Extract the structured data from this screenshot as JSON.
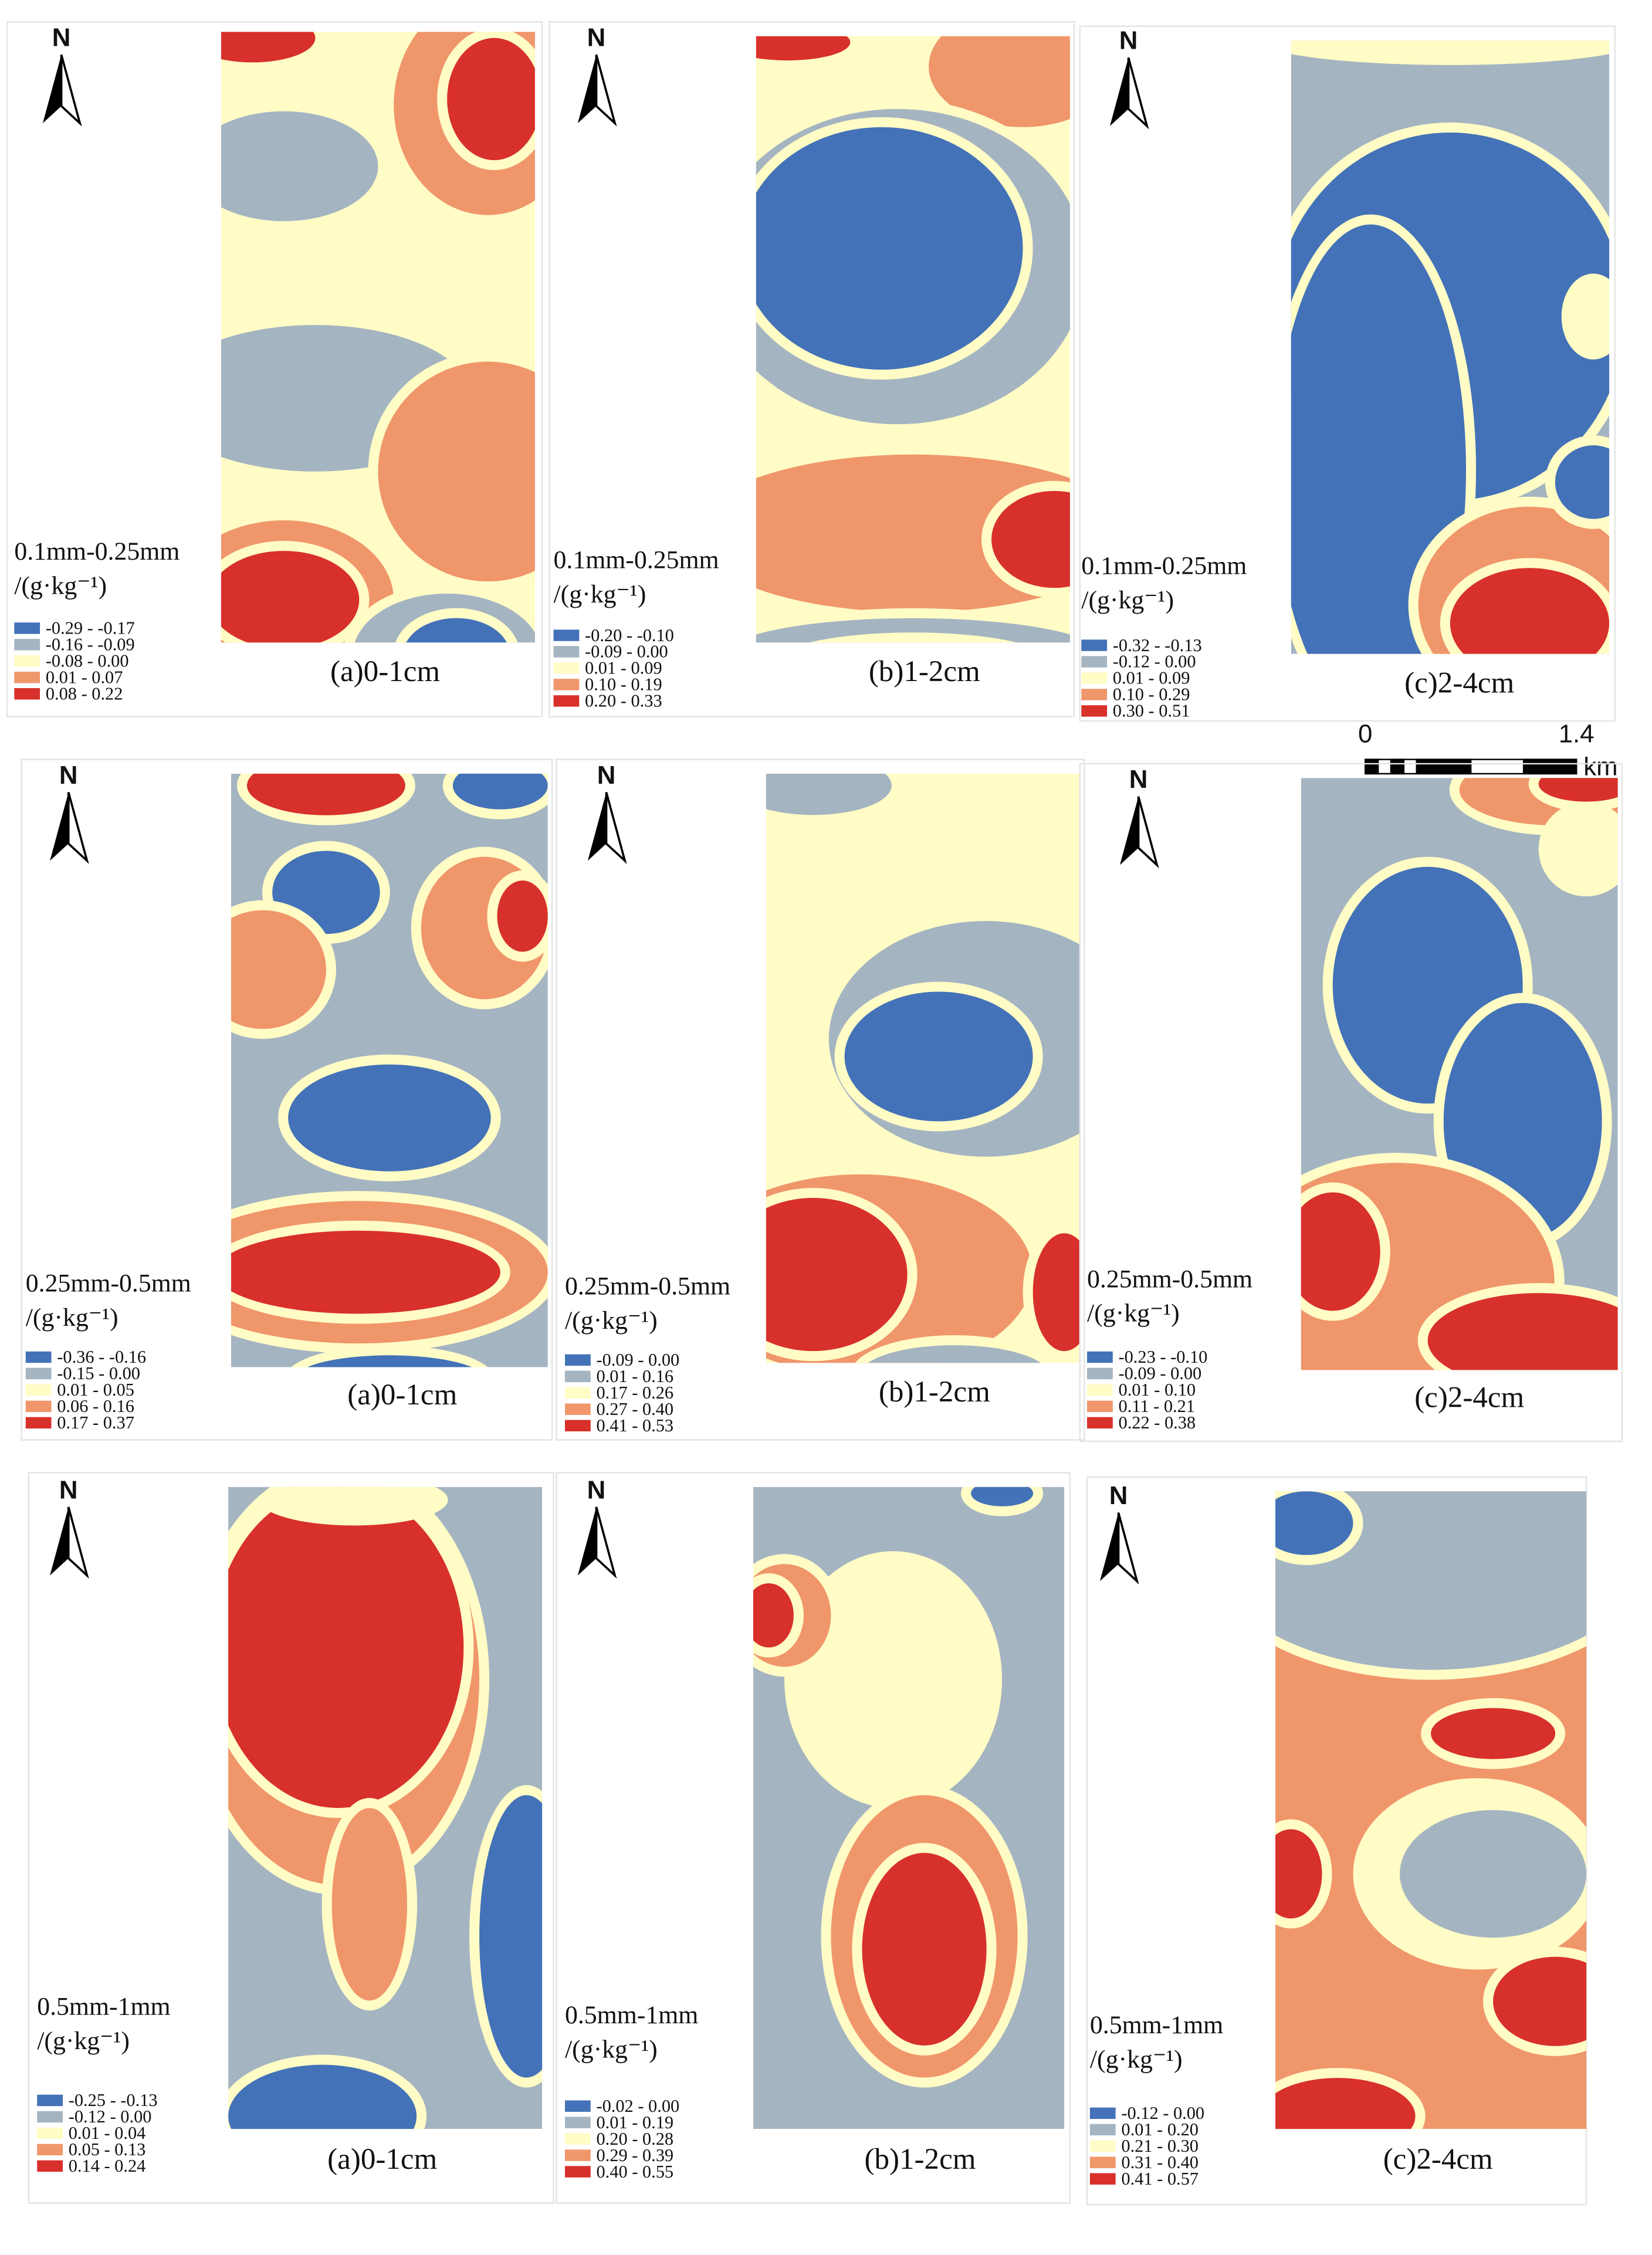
{
  "legend_colors": [
    "#4472b8",
    "#a5b4c1",
    "#fffcc6",
    "#f0966b",
    "#d8302b"
  ],
  "panels": [
    {
      "north": "N",
      "class": "0.1mm-0.25mm",
      "unit": "/(g·kg⁻¹)",
      "legend": [
        "-0.29 - -0.17",
        "-0.16 - -0.09",
        "-0.08 - 0.00",
        "0.01 - 0.07",
        "0.08 - 0.22"
      ],
      "caption": "(a)0-1cm"
    },
    {
      "north": "N",
      "class": "0.1mm-0.25mm",
      "unit": "/(g·kg⁻¹)",
      "legend": [
        "-0.20 - -0.10",
        "-0.09 - 0.00",
        "0.01 - 0.09",
        "0.10 - 0.19",
        "0.20 - 0.33"
      ],
      "caption": "(b)1-2cm"
    },
    {
      "north": "N",
      "class": "0.1mm-0.25mm",
      "unit": "/(g·kg⁻¹)",
      "legend": [
        "-0.32 - -0.13",
        "-0.12 - 0.00",
        "0.01 - 0.09",
        "0.10 - 0.29",
        "0.30 - 0.51"
      ],
      "caption": "(c)2-4cm"
    },
    {
      "north": "N",
      "class": "0.25mm-0.5mm",
      "unit": "/(g·kg⁻¹)",
      "legend": [
        "-0.36 - -0.16",
        "-0.15 - 0.00",
        "0.01 - 0.05",
        "0.06 - 0.16",
        "0.17 - 0.37"
      ],
      "caption": "(a)0-1cm"
    },
    {
      "north": "N",
      "class": "0.25mm-0.5mm",
      "unit": "/(g·kg⁻¹)",
      "legend": [
        "-0.09 - 0.00",
        "0.01 - 0.16",
        "0.17 - 0.26",
        "0.27 - 0.40",
        "0.41 - 0.53"
      ],
      "caption": "(b)1-2cm"
    },
    {
      "north": "N",
      "class": "0.25mm-0.5mm",
      "unit": "/(g·kg⁻¹)",
      "legend": [
        "-0.23 - -0.10",
        "-0.09 - 0.00",
        "0.01 - 0.10",
        "0.11 - 0.21",
        "0.22 - 0.38"
      ],
      "caption": "(c)2-4cm"
    },
    {
      "north": "N",
      "class": "0.5mm-1mm",
      "unit": "/(g·kg⁻¹)",
      "legend": [
        "-0.25 - -0.13",
        "-0.12 - 0.00",
        "0.01 - 0.04",
        "0.05 - 0.13",
        "0.14 - 0.24"
      ],
      "caption": "(a)0-1cm"
    },
    {
      "north": "N",
      "class": "0.5mm-1mm",
      "unit": "/(g·kg⁻¹)",
      "legend": [
        "-0.02 - 0.00",
        "0.01 - 0.19",
        "0.20 - 0.28",
        "0.29 - 0.39",
        "0.40 - 0.55"
      ],
      "caption": "(b)1-2cm"
    },
    {
      "north": "N",
      "class": "0.5mm-1mm",
      "unit": "/(g·kg⁻¹)",
      "legend": [
        "-0.12 - 0.00",
        "0.01 - 0.20",
        "0.21 - 0.30",
        "0.31 - 0.40",
        "0.41 - 0.57"
      ],
      "caption": "(c)2-4cm"
    }
  ],
  "scale_bar": {
    "start": "0",
    "end": "1.4",
    "unit": "km"
  }
}
